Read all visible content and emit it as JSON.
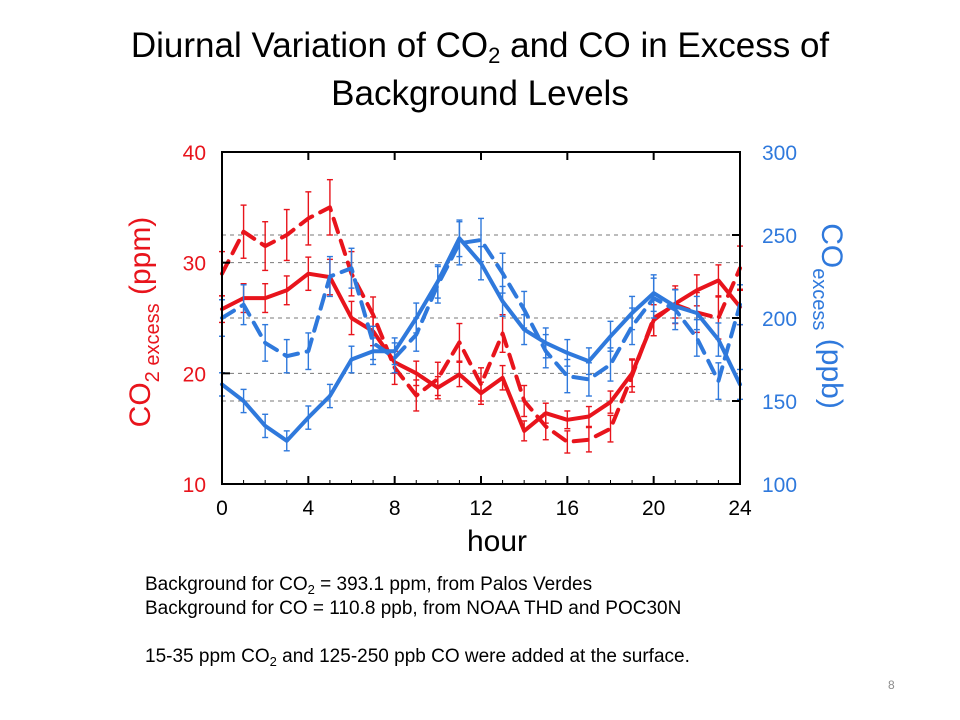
{
  "slide": {
    "title_pre": "Diurnal Variation of CO",
    "title_sub": "2",
    "title_post": " and CO in Excess of",
    "title_line2": "Background Levels",
    "notes": {
      "line1_pre": "Background for CO",
      "line1_sub": "2",
      "line1_post": " = 393.1 ppm, from Palos Verdes",
      "line2": "Background for CO = 110.8 ppb, from NOAA THD and POC30N",
      "line3_pre": "15-35 ppm CO",
      "line3_sub": "2",
      "line3_mid": " and 125-250 ppb CO were added at the surface."
    },
    "page_number": "8"
  },
  "colors": {
    "co2": "#e8141c",
    "co": "#2f79dc",
    "axes": "#000000",
    "grid": "#7a7a7a"
  },
  "chart_data": {
    "type": "line",
    "title": "",
    "xlabel": "hour",
    "x_ticks": [
      0,
      4,
      8,
      12,
      16,
      20,
      24
    ],
    "xlim": [
      0,
      24
    ],
    "ylabel_left": {
      "pre": "CO",
      "sub": "2 excess",
      "post": " (ppm)"
    },
    "ylim_left": [
      10,
      40
    ],
    "yticks_left": [
      10,
      20,
      30,
      40
    ],
    "ylabel_right": {
      "pre": "CO",
      "sub": "excess",
      "post": " (ppb)"
    },
    "ylim_right": [
      100,
      300
    ],
    "yticks_right": [
      100,
      150,
      200,
      250,
      300
    ],
    "grid": "dashed horizontal",
    "x": [
      0,
      1,
      2,
      3,
      4,
      5,
      6,
      7,
      8,
      9,
      10,
      11,
      12,
      13,
      14,
      15,
      16,
      17,
      18,
      19,
      20,
      21,
      22,
      23,
      24
    ],
    "series": [
      {
        "axis": "left",
        "style": "solid",
        "color": "#e8141c",
        "values": [
          25.8,
          26.8,
          26.8,
          27.5,
          29.0,
          28.7,
          25.0,
          23.8,
          21.0,
          20.0,
          18.7,
          19.9,
          18.2,
          19.6,
          14.8,
          16.4,
          15.8,
          16.1,
          17.4,
          20.0,
          24.8,
          26.3,
          27.5,
          28.4,
          26.0
        ],
        "errors": [
          1.2,
          1.3,
          1.3,
          1.3,
          1.5,
          1.6,
          1.5,
          1.3,
          1.0,
          1.1,
          1.0,
          1.1,
          1.0,
          1.1,
          0.9,
          0.9,
          0.8,
          0.9,
          1.0,
          1.2,
          1.4,
          1.3,
          1.4,
          1.4,
          1.6
        ]
      },
      {
        "axis": "left",
        "style": "dashed",
        "color": "#e8141c",
        "values": [
          29.0,
          32.8,
          31.5,
          32.5,
          34.0,
          35.0,
          29.0,
          25.3,
          20.5,
          18.0,
          19.5,
          22.8,
          19.0,
          23.6,
          17.5,
          15.2,
          13.8,
          14.0,
          15.0,
          19.8,
          25.0,
          26.2,
          25.5,
          25.0,
          29.5
        ],
        "errors": [
          2.0,
          2.4,
          2.2,
          2.3,
          2.4,
          2.5,
          2.0,
          1.6,
          1.5,
          1.4,
          1.5,
          1.7,
          1.5,
          1.7,
          1.4,
          1.2,
          1.0,
          1.1,
          1.2,
          1.5,
          1.6,
          1.7,
          1.8,
          1.9,
          2.0
        ]
      },
      {
        "axis": "right",
        "style": "solid",
        "color": "#2f79dc",
        "values": [
          160,
          150,
          135,
          126,
          140,
          153,
          175,
          180,
          180,
          200,
          222,
          248,
          233,
          210,
          193,
          185,
          179,
          174,
          189,
          203,
          215,
          207,
          203,
          187,
          160
        ],
        "errors": [
          7,
          7,
          7,
          6,
          7,
          7,
          8,
          8,
          8,
          9,
          10,
          11,
          10,
          9,
          9,
          9,
          8,
          8,
          9,
          10,
          11,
          10,
          10,
          10,
          9
        ]
      },
      {
        "axis": "right",
        "style": "dashed",
        "color": "#2f79dc",
        "values": [
          200,
          208,
          185,
          177,
          180,
          225,
          230,
          185,
          176,
          190,
          220,
          245,
          247,
          227,
          205,
          180,
          165,
          163,
          172,
          195,
          212,
          205,
          188,
          162,
          208
        ],
        "errors": [
          11,
          12,
          11,
          10,
          11,
          12,
          12,
          10,
          9,
          10,
          11,
          13,
          13,
          12,
          11,
          10,
          10,
          10,
          10,
          11,
          12,
          12,
          11,
          11,
          12
        ]
      }
    ]
  }
}
